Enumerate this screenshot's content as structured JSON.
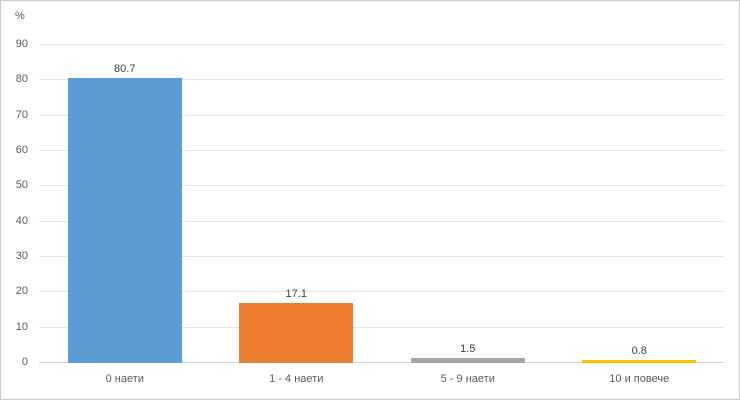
{
  "chart_data": {
    "type": "bar",
    "categories": [
      "0 наети",
      "1 - 4 наети",
      "5 - 9 наети",
      "10 и повече"
    ],
    "values": [
      80.7,
      17.1,
      1.5,
      0.8
    ],
    "value_labels": [
      "80.7",
      "17.1",
      "1.5",
      "0.8"
    ],
    "bar_colors": [
      "#5B9BD5",
      "#ED7D31",
      "#A5A5A5",
      "#FFC000"
    ],
    "title": "",
    "xlabel": "",
    "ylabel": "%",
    "ylim": [
      0,
      90
    ],
    "yticks": [
      0,
      10,
      20,
      30,
      40,
      50,
      60,
      70,
      80,
      90
    ],
    "grid": "horizontal",
    "legend": "none"
  },
  "colors": {
    "frame_border": "#c9c9c9",
    "gridline": "#e2e2e2",
    "axis_text": "#595959",
    "data_label_text": "#404040",
    "background": "#ffffff"
  }
}
